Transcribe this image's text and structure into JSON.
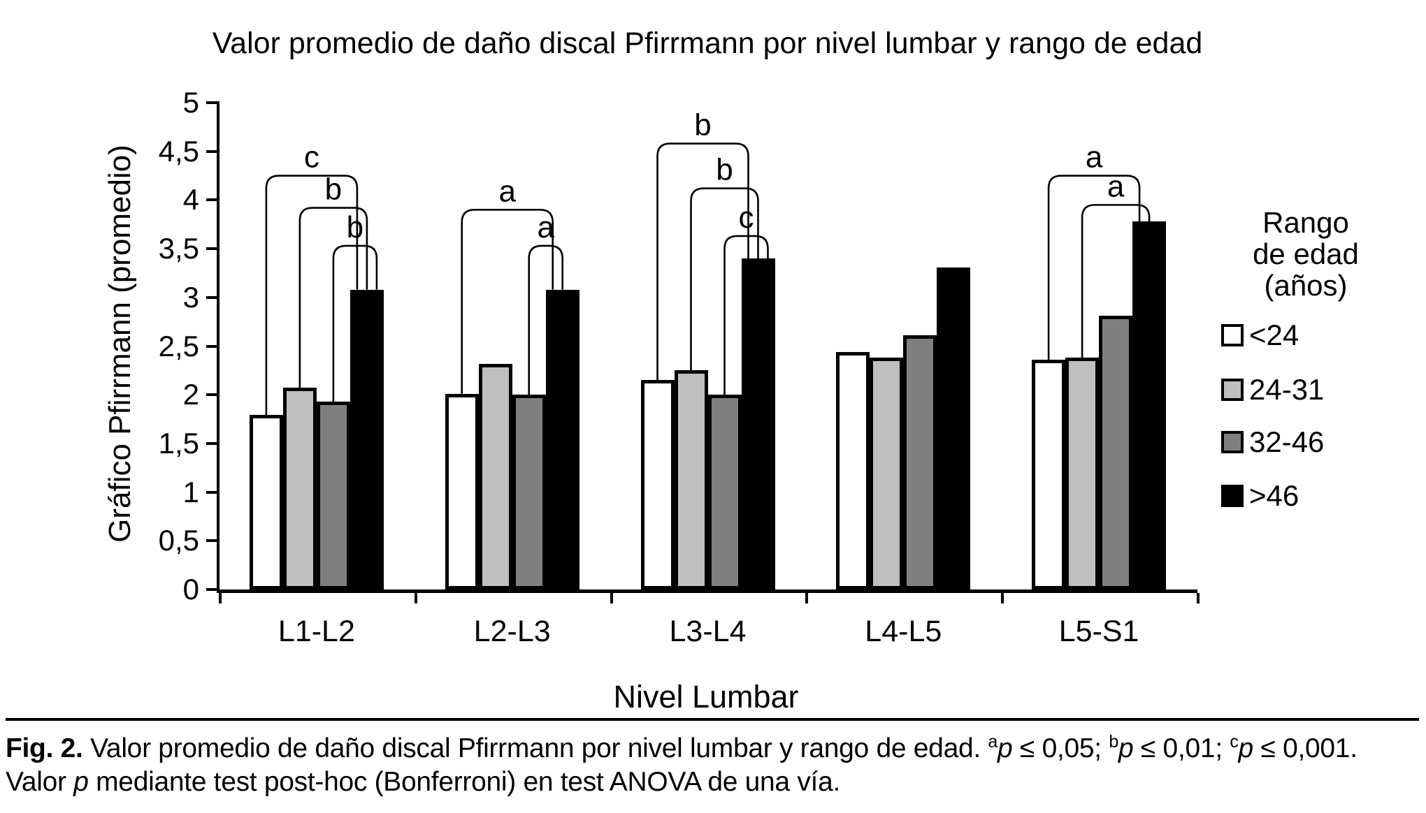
{
  "figure": {
    "caption_segments": [
      {
        "text": "Fig. 2.",
        "bold": true
      },
      {
        "text": " Valor promedio de daño discal Pfirrmann por nivel lumbar y rango de edad. "
      },
      {
        "text": "a",
        "sup": true
      },
      {
        "text": "p",
        "italic": true
      },
      {
        "text": " ≤ 0,05; "
      },
      {
        "text": "b",
        "sup": true
      },
      {
        "text": "p",
        "italic": true
      },
      {
        "text": " ≤ 0,01; "
      },
      {
        "text": "c",
        "sup": true
      },
      {
        "text": "p",
        "italic": true
      },
      {
        "text": " ≤ 0,001. Valor "
      },
      {
        "text": "p",
        "italic": true
      },
      {
        "text": " mediante test post-hoc (Bonferroni) en test ANOVA de una vía."
      }
    ]
  },
  "chart_data": {
    "type": "bar",
    "title": "Valor promedio de daño discal Pfirrmann por nivel lumbar y rango de edad",
    "xlabel": "Nivel Lumbar",
    "ylabel": "Gráfico Pfirrmann (promedio)",
    "categories": [
      "L1-L2",
      "L2-L3",
      "L3-L4",
      "L4-L5",
      "L5-S1"
    ],
    "series": [
      {
        "name": "<24",
        "color": "#ffffff",
        "values": [
          1.79,
          2.01,
          2.15,
          2.44,
          2.36
        ]
      },
      {
        "name": "24-31",
        "color": "#bfbfbf",
        "values": [
          2.07,
          2.32,
          2.25,
          2.38,
          2.38
        ]
      },
      {
        "name": "32-46",
        "color": "#7f7f7f",
        "values": [
          1.93,
          2.0,
          2.0,
          2.61,
          2.81
        ]
      },
      {
        "name": ">46",
        "color": "#000000",
        "values": [
          3.08,
          3.08,
          3.4,
          3.31,
          3.78
        ]
      }
    ],
    "ylim": [
      0,
      5
    ],
    "ytick_step": 0.5,
    "ytick_labels": [
      "0",
      "0,5",
      "1",
      "1,5",
      "2",
      "2,5",
      "3",
      "3,5",
      "4",
      "4,5",
      "5"
    ],
    "grid": false,
    "legend_position": "right",
    "legend_title": "Rango de edad (años)",
    "legend_title_lines": [
      "Rango",
      "de edad",
      "(años)"
    ],
    "significance_brackets": [
      {
        "category": "L1-L2",
        "label": "c",
        "from_series": "<24",
        "to_series": ">46",
        "height": 4.25
      },
      {
        "category": "L1-L2",
        "label": "b",
        "from_series": "24-31",
        "to_series": ">46",
        "height": 3.92
      },
      {
        "category": "L1-L2",
        "label": "b",
        "from_series": "32-46",
        "to_series": ">46",
        "height": 3.53
      },
      {
        "category": "L2-L3",
        "label": "a",
        "from_series": "<24",
        "to_series": ">46",
        "height": 3.9
      },
      {
        "category": "L2-L3",
        "label": "a",
        "from_series": "32-46",
        "to_series": ">46",
        "height": 3.53
      },
      {
        "category": "L3-L4",
        "label": "b",
        "from_series": "<24",
        "to_series": ">46",
        "height": 4.58
      },
      {
        "category": "L3-L4",
        "label": "b",
        "from_series": "24-31",
        "to_series": ">46",
        "height": 4.12
      },
      {
        "category": "L3-L4",
        "label": "c",
        "from_series": "32-46",
        "to_series": ">46",
        "height": 3.63
      },
      {
        "category": "L5-S1",
        "label": "a",
        "from_series": "<24",
        "to_series": ">46",
        "height": 4.25
      },
      {
        "category": "L5-S1",
        "label": "a",
        "from_series": "24-31",
        "to_series": ">46",
        "height": 3.95
      }
    ]
  }
}
